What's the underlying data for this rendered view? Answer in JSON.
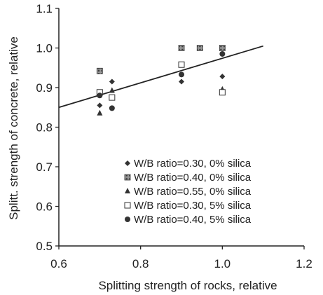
{
  "chart_data": {
    "type": "scatter",
    "title": "",
    "xlabel": "Splitting strength of rocks, relative",
    "ylabel": "Splitt. strength of concrete, relative",
    "xlim": [
      0.6,
      1.2
    ],
    "ylim": [
      0.5,
      1.1
    ],
    "xticks": [
      "0.6",
      "0.8",
      "1.0",
      "1.2"
    ],
    "yticks": [
      "0.5",
      "0.6",
      "0.7",
      "0.8",
      "0.9",
      "1.0",
      "1.1"
    ],
    "grid": false,
    "legend_position": "bottom-right",
    "series": [
      {
        "name": "W/B ratio=0.30, 0% silica",
        "marker": "diamond",
        "x": [
          0.7,
          0.73,
          0.9,
          1.0
        ],
        "y": [
          0.855,
          0.915,
          0.915,
          0.928
        ]
      },
      {
        "name": "W/B ratio=0.40, 0% silica",
        "marker": "hatched-square",
        "x": [
          0.7,
          0.9,
          0.945,
          1.0
        ],
        "y": [
          0.942,
          1.0,
          1.0,
          1.0
        ]
      },
      {
        "name": "W/B ratio=0.55, 0% silica",
        "marker": "triangle",
        "x": [
          0.7,
          0.73,
          1.0
        ],
        "y": [
          0.835,
          0.892,
          0.895
        ]
      },
      {
        "name": "W/B ratio=0.30, 5% silica",
        "marker": "open-square",
        "x": [
          0.7,
          0.73,
          0.9,
          1.0
        ],
        "y": [
          0.888,
          0.875,
          0.958,
          0.888
        ]
      },
      {
        "name": "W/B ratio=0.40, 5% silica",
        "marker": "circle",
        "x": [
          0.7,
          0.73,
          0.9,
          1.0
        ],
        "y": [
          0.88,
          0.848,
          0.933,
          0.985
        ]
      }
    ],
    "trendline": {
      "x": [
        0.6,
        1.1
      ],
      "y": [
        0.85,
        1.005
      ]
    }
  }
}
